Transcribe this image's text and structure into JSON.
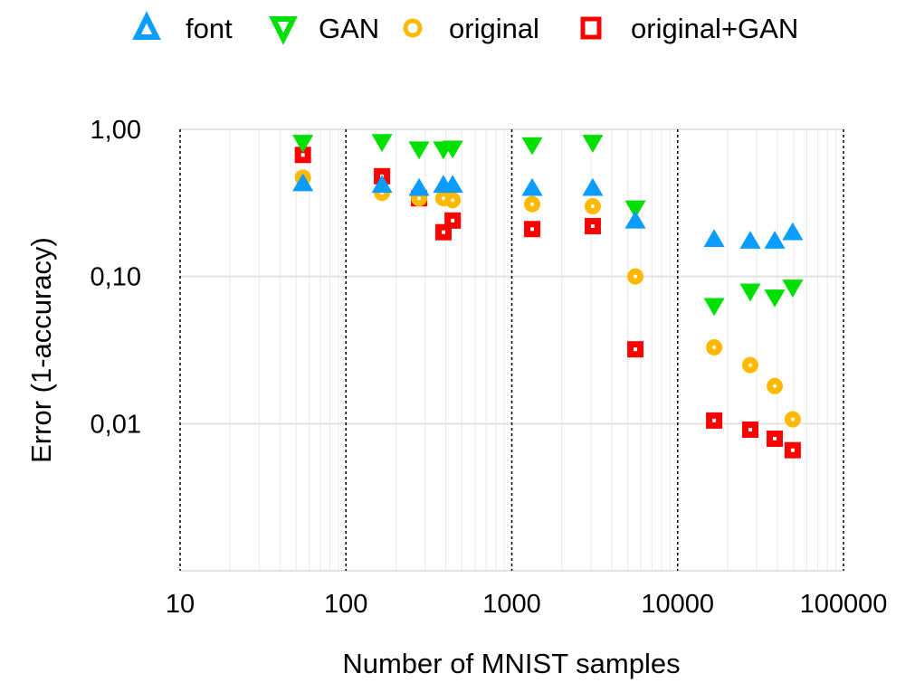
{
  "chart_data": {
    "type": "scatter",
    "title": "",
    "xlabel": "Number of MNIST samples",
    "ylabel": "Error (1-accuracy)",
    "xscale": "log",
    "yscale": "log",
    "xlim": [
      10,
      100000
    ],
    "ylim": [
      0.001,
      1.0
    ],
    "x_ticks": [
      10,
      100,
      1000,
      10000,
      100000
    ],
    "x_tick_labels": [
      "10",
      "100",
      "1000",
      "10000",
      "100000"
    ],
    "y_ticks": [
      1.0,
      0.1,
      0.01
    ],
    "y_tick_labels": [
      "1,00",
      "0,10",
      "0,01"
    ],
    "grid": true,
    "legend_position": "top",
    "x": [
      55,
      165,
      276,
      387,
      440,
      1327,
      3077,
      5560,
      16600,
      27400,
      38500,
      49400
    ],
    "series": [
      {
        "name": "font",
        "marker": "triangle-up",
        "color": "#0a9dff",
        "values": [
          0.43,
          0.42,
          0.4,
          0.42,
          0.42,
          0.4,
          0.4,
          0.24,
          0.18,
          0.175,
          0.175,
          0.2
        ]
      },
      {
        "name": "GAN",
        "marker": "triangle-down",
        "color": "#00e000",
        "values": [
          0.81,
          0.82,
          0.73,
          0.73,
          0.74,
          0.78,
          0.81,
          0.29,
          0.063,
          0.079,
          0.072,
          0.084
        ]
      },
      {
        "name": "original",
        "marker": "circle",
        "color": "#ffb900",
        "values": [
          0.47,
          0.37,
          0.34,
          0.34,
          0.33,
          0.31,
          0.3,
          0.1,
          0.033,
          0.025,
          0.018,
          0.0107
        ]
      },
      {
        "name": "original+GAN",
        "marker": "square",
        "color": "#ff0000",
        "values": [
          0.67,
          0.48,
          0.34,
          0.2,
          0.24,
          0.21,
          0.22,
          0.032,
          0.0105,
          0.0091,
          0.0079,
          0.0066
        ]
      }
    ]
  }
}
